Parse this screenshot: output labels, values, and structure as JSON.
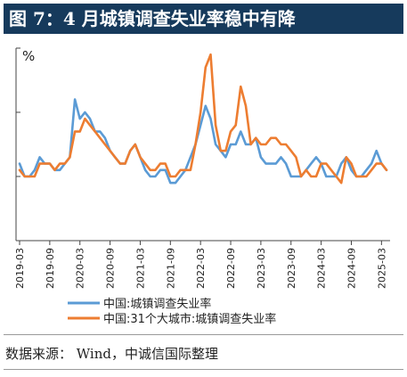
{
  "title": "图 7：4 月城镇调查失业率稳中有降",
  "source": "数据来源： Wind，中诚信国际整理",
  "chart_data": {
    "type": "line",
    "unit_label": "%",
    "x": [
      "2019-03",
      "2019-04",
      "2019-05",
      "2019-06",
      "2019-07",
      "2019-08",
      "2019-09",
      "2019-10",
      "2019-11",
      "2019-12",
      "2020-01",
      "2020-02",
      "2020-03",
      "2020-04",
      "2020-05",
      "2020-06",
      "2020-07",
      "2020-08",
      "2020-09",
      "2020-10",
      "2020-11",
      "2020-12",
      "2021-01",
      "2021-02",
      "2021-03",
      "2021-04",
      "2021-05",
      "2021-06",
      "2021-07",
      "2021-08",
      "2021-09",
      "2021-10",
      "2021-11",
      "2021-12",
      "2022-01",
      "2022-02",
      "2022-03",
      "2022-04",
      "2022-05",
      "2022-06",
      "2022-07",
      "2022-08",
      "2022-09",
      "2022-10",
      "2022-11",
      "2022-12",
      "2023-01",
      "2023-02",
      "2023-03",
      "2023-04",
      "2023-05",
      "2023-06",
      "2023-07",
      "2023-08",
      "2023-09",
      "2023-10",
      "2023-11",
      "2023-12",
      "2024-01",
      "2024-02",
      "2024-03",
      "2024-04",
      "2024-05",
      "2024-06",
      "2024-07",
      "2024-08",
      "2024-09",
      "2024-10",
      "2024-11",
      "2024-12",
      "2025-01",
      "2025-02",
      "2025-03",
      "2025-04"
    ],
    "x_tick_labels": [
      "2019-03",
      "2019-09",
      "2020-03",
      "2020-09",
      "2021-03",
      "2021-09",
      "2022-03",
      "2022-09",
      "2023-03",
      "2023-09",
      "2024-03",
      "2024-09",
      "2025-03"
    ],
    "ylim": [
      4.0,
      7.0
    ],
    "series": [
      {
        "name": "中国:城镇调查失业率",
        "color": "#5b9bd5",
        "values": [
          5.2,
          5.0,
          5.0,
          5.1,
          5.3,
          5.2,
          5.2,
          5.1,
          5.1,
          5.2,
          5.3,
          6.2,
          5.9,
          6.0,
          5.9,
          5.7,
          5.7,
          5.6,
          5.4,
          5.3,
          5.2,
          5.2,
          5.4,
          5.5,
          5.3,
          5.1,
          5.0,
          5.0,
          5.1,
          5.1,
          4.9,
          4.9,
          5.0,
          5.1,
          5.3,
          5.5,
          5.8,
          6.1,
          5.9,
          5.5,
          5.4,
          5.3,
          5.5,
          5.5,
          5.7,
          5.5,
          5.5,
          5.6,
          5.3,
          5.2,
          5.2,
          5.2,
          5.3,
          5.2,
          5.0,
          5.0,
          5.0,
          5.1,
          5.2,
          5.3,
          5.2,
          5.0,
          5.0,
          5.0,
          5.2,
          5.3,
          5.1,
          5.0,
          5.0,
          5.1,
          5.2,
          5.4,
          5.2,
          5.1
        ]
      },
      {
        "name": "中国:31个大城市:城镇调查失业率",
        "color": "#ed7d31",
        "values": [
          5.1,
          5.0,
          5.0,
          5.0,
          5.2,
          5.2,
          5.2,
          5.1,
          5.2,
          5.2,
          5.3,
          5.7,
          5.7,
          5.9,
          5.8,
          5.7,
          5.6,
          5.5,
          5.4,
          5.3,
          5.2,
          5.2,
          5.4,
          5.5,
          5.3,
          5.2,
          5.1,
          5.1,
          5.2,
          5.2,
          5.0,
          5.0,
          5.1,
          5.1,
          5.1,
          5.5,
          6.0,
          6.7,
          6.9,
          5.8,
          5.4,
          5.4,
          5.7,
          5.8,
          6.4,
          6.1,
          5.5,
          5.6,
          5.5,
          5.5,
          5.6,
          5.6,
          5.5,
          5.5,
          5.4,
          5.3,
          5.0,
          5.1,
          5.0,
          5.0,
          5.2,
          5.2,
          5.1,
          5.0,
          4.9,
          5.3,
          5.2,
          5.0,
          5.0,
          5.0,
          5.1,
          5.2,
          5.2,
          5.1
        ]
      }
    ],
    "grid": false,
    "legend_position": "bottom"
  }
}
